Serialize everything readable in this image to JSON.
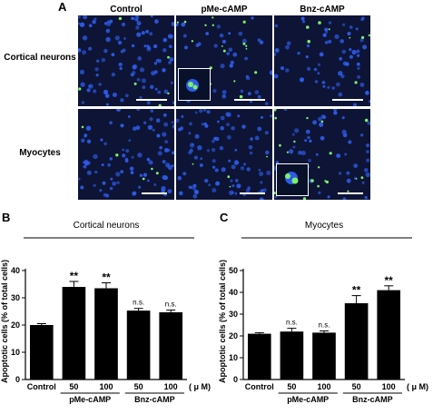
{
  "figure": {
    "panel_a_label": "A",
    "columns": [
      "Control",
      "pMe-cAMP",
      "Bnz-cAMP"
    ],
    "rows": [
      "Cortical neurons",
      "Myocytes"
    ],
    "micrograph_colors": {
      "background": "#0d1436",
      "nuclei": "#2d5be8",
      "apoptotic": "#7cf06a"
    }
  },
  "chart_data": [
    {
      "type": "bar",
      "panel_label": "B",
      "title": "Cortical neurons",
      "ylabel": "Apoptotic cells (% of total cells)",
      "ylim": [
        0,
        40
      ],
      "yticks": [
        0,
        10,
        20,
        30,
        40
      ],
      "categories": [
        "Control",
        "50",
        "100",
        "50",
        "100"
      ],
      "unit_label": "( μ M)",
      "values": [
        20,
        34,
        33.5,
        25.3,
        24.7
      ],
      "errors": [
        0.5,
        2,
        2,
        0.8,
        0.8
      ],
      "annotations": [
        "",
        "**",
        "**",
        "n.s.",
        "n.s."
      ],
      "groups": [
        {
          "label": "pMe-cAMP",
          "start": 1,
          "end": 2
        },
        {
          "label": "Bnz-cAMP",
          "start": 3,
          "end": 4
        }
      ],
      "bar_color": "#000000"
    },
    {
      "type": "bar",
      "panel_label": "C",
      "title": "Myocytes",
      "ylabel": "Apoptotic cells (% of total cells)",
      "ylim": [
        0,
        50
      ],
      "yticks": [
        0,
        10,
        20,
        30,
        40,
        50
      ],
      "categories": [
        "Control",
        "50",
        "100",
        "50",
        "100"
      ],
      "unit_label": "( μ M)",
      "values": [
        21,
        22,
        21.5,
        35,
        41
      ],
      "errors": [
        0.5,
        1.5,
        0.8,
        3.5,
        2
      ],
      "annotations": [
        "",
        "n.s.",
        "n.s.",
        "**",
        "**"
      ],
      "groups": [
        {
          "label": "pMe-cAMP",
          "start": 1,
          "end": 2
        },
        {
          "label": "Bnz-cAMP",
          "start": 3,
          "end": 4
        }
      ],
      "bar_color": "#000000"
    }
  ]
}
